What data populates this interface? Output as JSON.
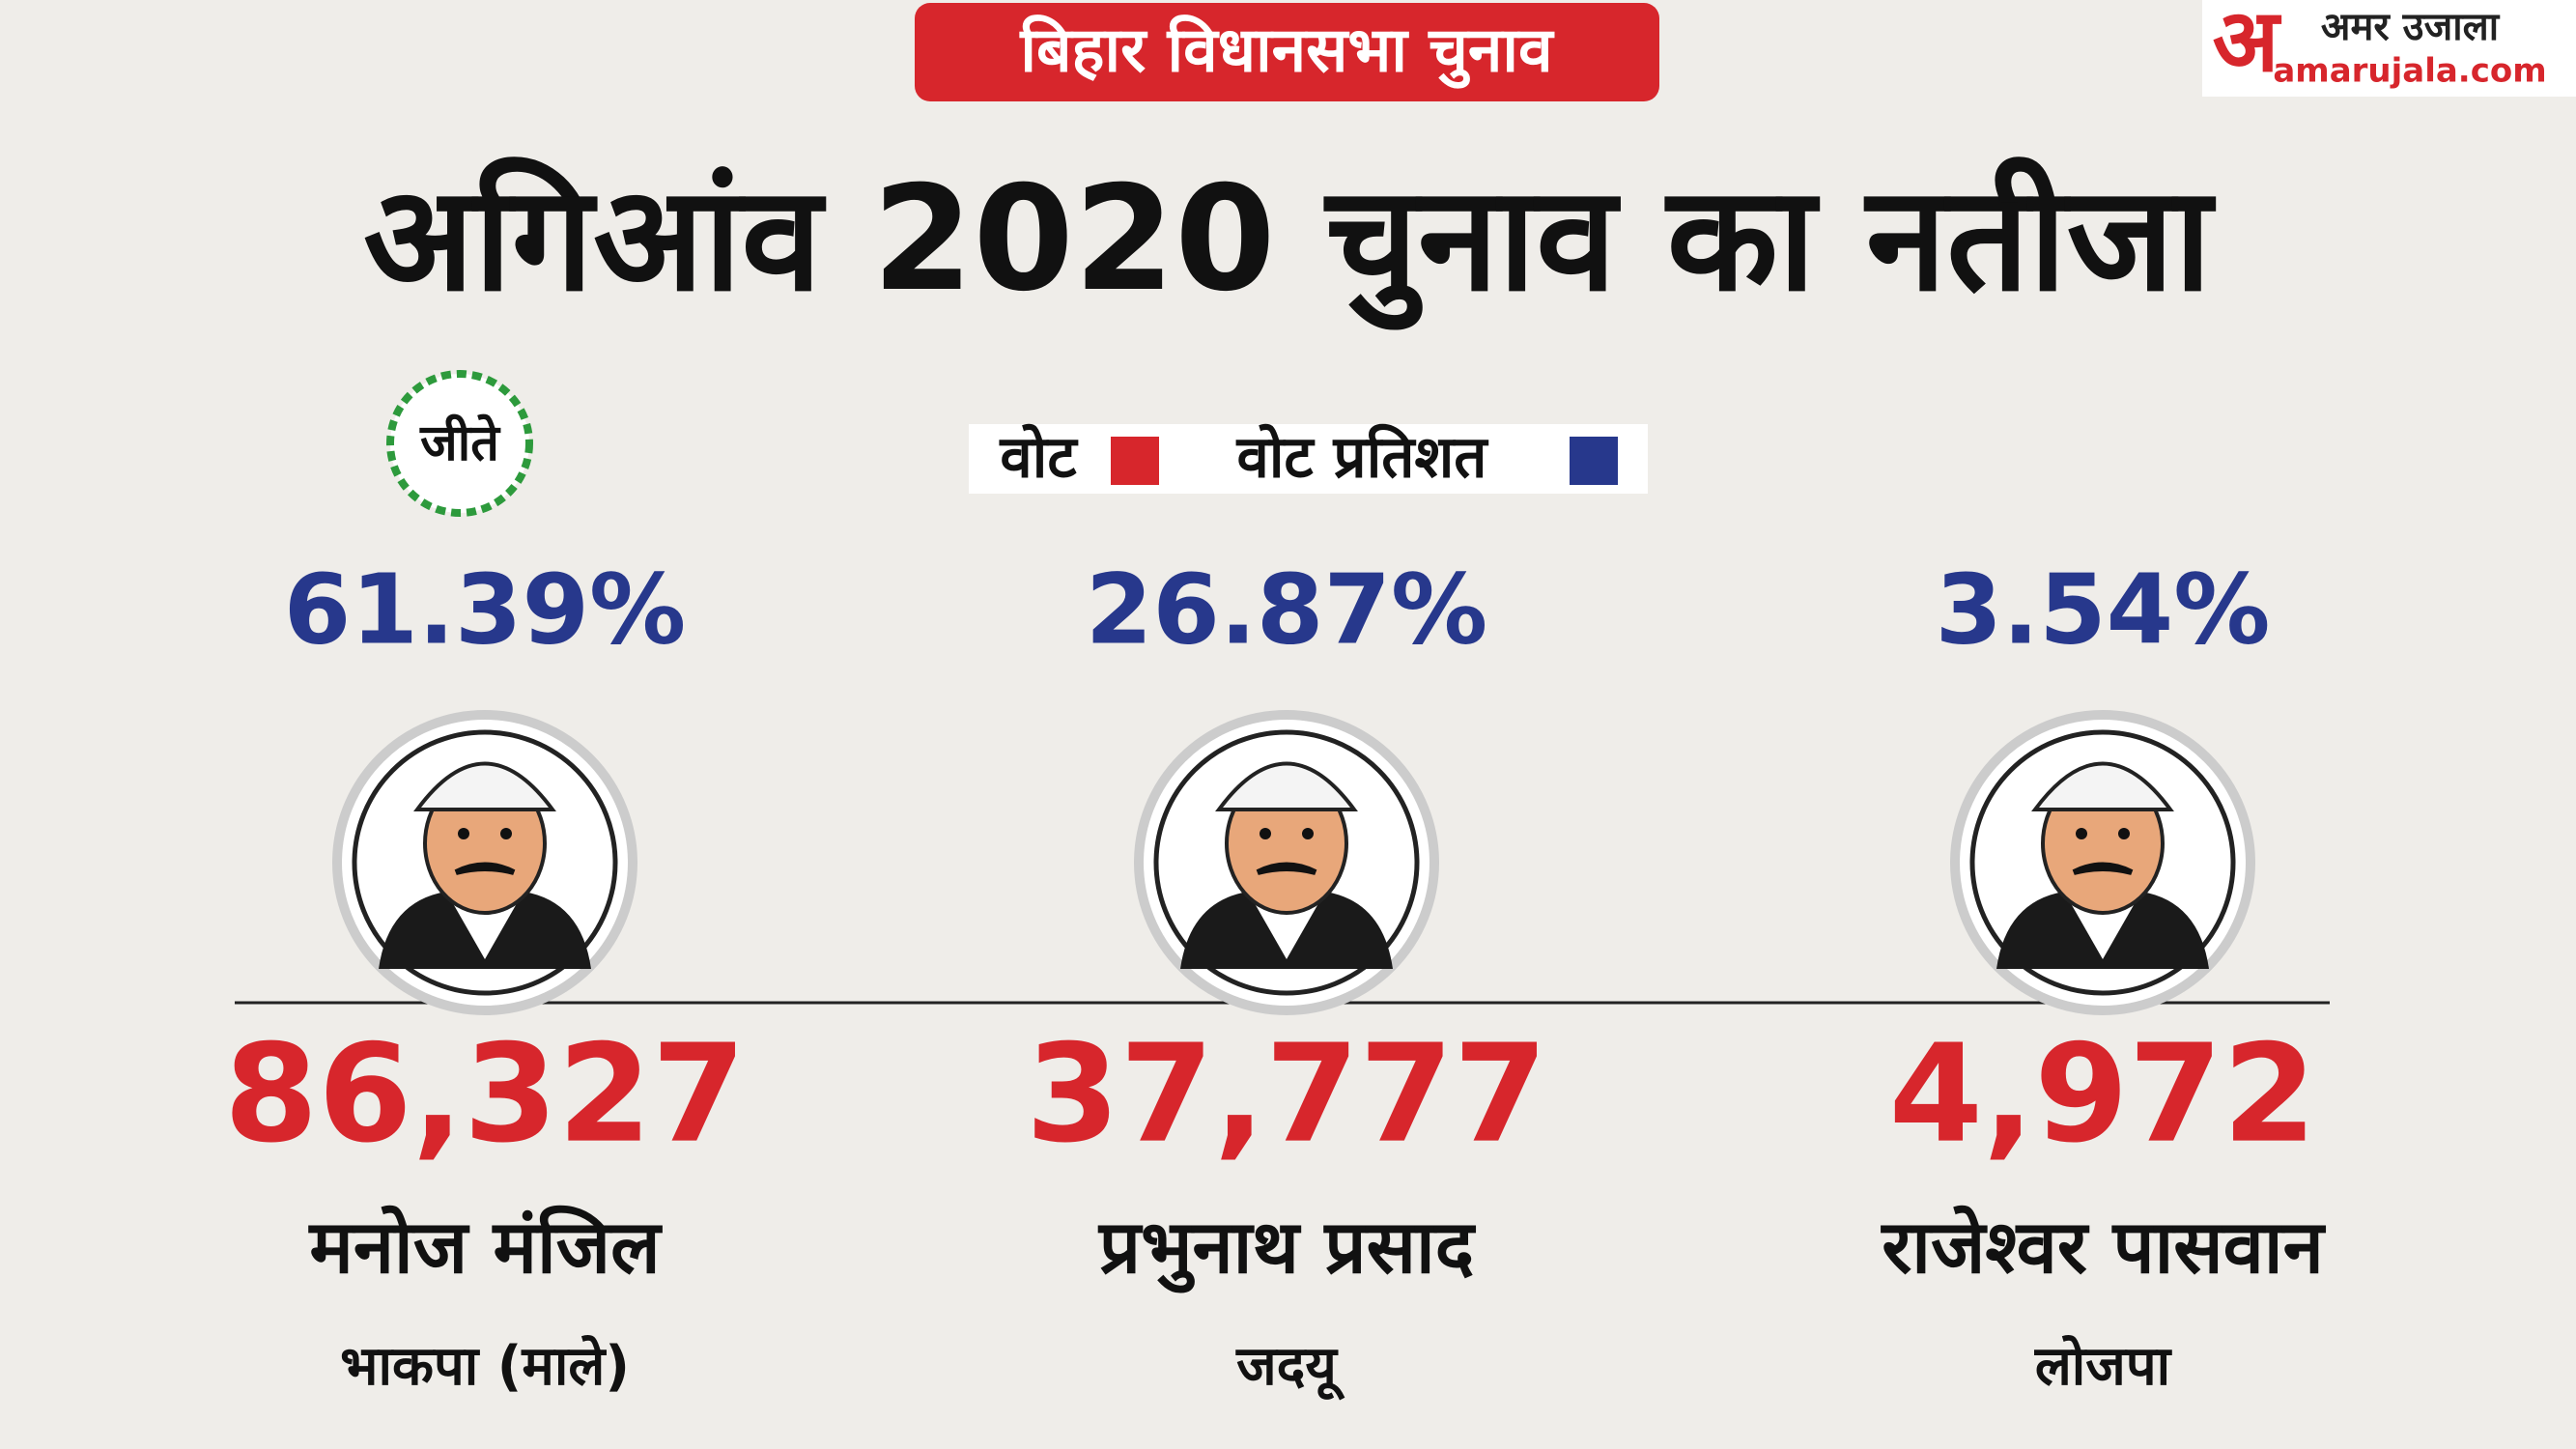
{
  "header": {
    "tag": "बिहार विधानसभा चुनाव",
    "title": "अगिआंव  2020 चुनाव का नतीजा"
  },
  "logo": {
    "mark": "अ",
    "name": "अमर उजाला",
    "site": "amarujala.com"
  },
  "winner_badge": "जीते",
  "legend": [
    {
      "label": "वोट",
      "color": "#d7262c"
    },
    {
      "label": "वोट प्रतिशत",
      "color": "#27388c"
    }
  ],
  "candidates": [
    {
      "percent": "61.39%",
      "votes": "86,327",
      "name": "मनोज मंजिल",
      "party": "भाकपा (माले)"
    },
    {
      "percent": "26.87%",
      "votes": "37,777",
      "name": "प्रभुनाथ प्रसाद",
      "party": "जदयू"
    },
    {
      "percent": "3.54%",
      "votes": "4,972",
      "name": "राजेश्वर पासवान",
      "party": "लोजपा"
    }
  ]
}
